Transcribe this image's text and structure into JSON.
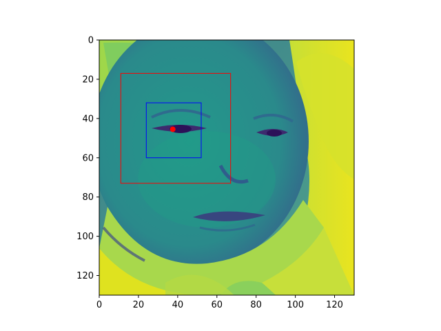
{
  "chart_data": {
    "type": "image",
    "title": "",
    "xlabel": "",
    "ylabel": "",
    "xlim": [
      0,
      130
    ],
    "ylim": [
      130,
      0
    ],
    "x_ticks": [
      0,
      20,
      40,
      60,
      80,
      100,
      120
    ],
    "y_ticks": [
      0,
      20,
      40,
      60,
      80,
      100,
      120
    ],
    "image": {
      "width": 130,
      "height": 130,
      "colormap": "viridis",
      "subject": "infant face"
    },
    "boxes": [
      {
        "name": "outer",
        "color": "#ff0000",
        "x0": 11,
        "y0": 17,
        "x1": 67,
        "y1": 73
      },
      {
        "name": "inner",
        "color": "#0000ff",
        "x0": 24,
        "y0": 32,
        "x1": 52,
        "y1": 60
      }
    ],
    "points": [
      {
        "x": 37.5,
        "y": 45.5,
        "color": "#ff0000"
      }
    ],
    "grid": false,
    "legend": "none"
  }
}
